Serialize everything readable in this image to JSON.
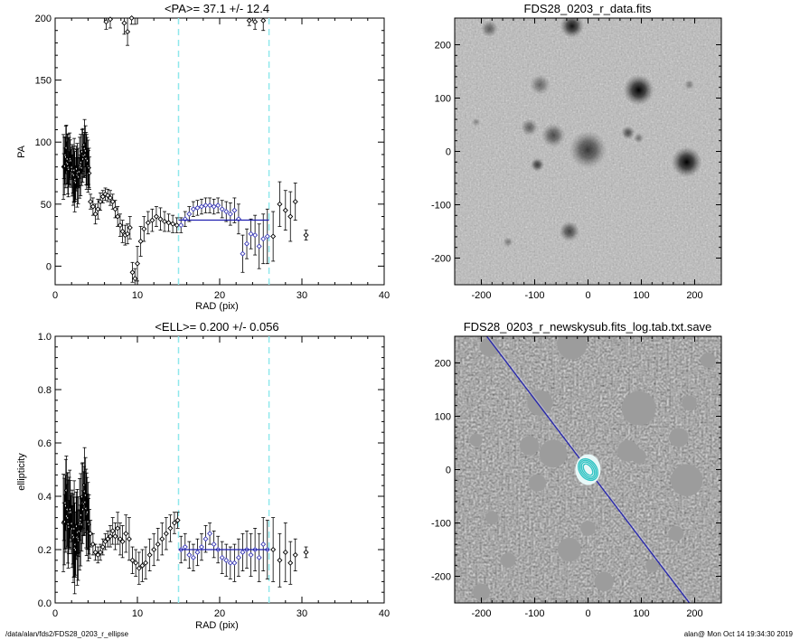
{
  "footer": {
    "path": "/data/alan/fds2/FDS28_0203_r_ellipse",
    "stamp": "alan@  Mon Oct 14 19:34:30 2019"
  },
  "colors": {
    "axes": "#000000",
    "fit_points": "#3b3bb5",
    "fit_line": "#1f1fb0",
    "bounds": "#8fe8ec",
    "contour": "#33c4c4"
  },
  "chart_data": [
    {
      "type": "scatter",
      "title": "<PA>=  37.1 +/-  12.4",
      "xlabel": "RAD (pix)",
      "ylabel": "PA",
      "xlim": [
        0,
        40
      ],
      "ylim": [
        -15,
        200
      ],
      "xticks": [
        0,
        10,
        20,
        30,
        40
      ],
      "yticks": [
        0,
        50,
        100,
        150,
        200
      ],
      "grid": false,
      "mean_value": 37.1,
      "fit_range": [
        15,
        26
      ],
      "bound_lines": [
        15,
        26
      ],
      "dense_band": {
        "x0": 1.0,
        "x1": 4.2,
        "center": 80,
        "amp": 15,
        "err": 20
      },
      "top_points": [
        {
          "x": 6.2,
          "y": 197,
          "e": 6
        },
        {
          "x": 6.7,
          "y": 199,
          "e": 7
        },
        {
          "x": 8.4,
          "y": 196,
          "e": 9
        },
        {
          "x": 8.8,
          "y": 189,
          "e": 11
        },
        {
          "x": 9.3,
          "y": 200,
          "e": 5
        },
        {
          "x": 9.7,
          "y": 203,
          "e": 8
        },
        {
          "x": 23.6,
          "y": 198,
          "e": 4
        },
        {
          "x": 24.3,
          "y": 197,
          "e": 6
        },
        {
          "x": 25.3,
          "y": 198,
          "e": 8
        }
      ],
      "points": [
        {
          "x": 4.3,
          "y": 52,
          "e": 6
        },
        {
          "x": 4.6,
          "y": 48,
          "e": 7
        },
        {
          "x": 4.9,
          "y": 42,
          "e": 8
        },
        {
          "x": 5.2,
          "y": 46,
          "e": 8
        },
        {
          "x": 5.5,
          "y": 52,
          "e": 7
        },
        {
          "x": 5.8,
          "y": 56,
          "e": 5
        },
        {
          "x": 6.1,
          "y": 58,
          "e": 5
        },
        {
          "x": 6.4,
          "y": 57,
          "e": 5
        },
        {
          "x": 6.7,
          "y": 55,
          "e": 6
        },
        {
          "x": 7.0,
          "y": 52,
          "e": 6
        },
        {
          "x": 7.3,
          "y": 46,
          "e": 7
        },
        {
          "x": 7.6,
          "y": 40,
          "e": 8
        },
        {
          "x": 7.9,
          "y": 33,
          "e": 9
        },
        {
          "x": 8.2,
          "y": 28,
          "e": 9
        },
        {
          "x": 8.5,
          "y": 25,
          "e": 8
        },
        {
          "x": 8.8,
          "y": 26,
          "e": 8
        },
        {
          "x": 9.1,
          "y": 31,
          "e": 9
        },
        {
          "x": 9.4,
          "y": -5,
          "e": 8
        },
        {
          "x": 9.7,
          "y": -10,
          "e": 8
        },
        {
          "x": 10.0,
          "y": 2,
          "e": 14
        },
        {
          "x": 10.4,
          "y": 20,
          "e": 12
        },
        {
          "x": 10.8,
          "y": 30,
          "e": 10
        },
        {
          "x": 11.3,
          "y": 35,
          "e": 9
        },
        {
          "x": 11.8,
          "y": 37,
          "e": 9
        },
        {
          "x": 12.3,
          "y": 40,
          "e": 8
        },
        {
          "x": 12.8,
          "y": 38,
          "e": 9
        },
        {
          "x": 13.3,
          "y": 36,
          "e": 8
        },
        {
          "x": 13.8,
          "y": 35,
          "e": 7
        },
        {
          "x": 14.3,
          "y": 34,
          "e": 7
        },
        {
          "x": 14.8,
          "y": 33,
          "e": 6
        },
        {
          "x": 26.5,
          "y": 24,
          "e": 20
        },
        {
          "x": 27.3,
          "y": 50,
          "e": 18
        },
        {
          "x": 28.0,
          "y": 45,
          "e": 16
        },
        {
          "x": 28.6,
          "y": 40,
          "e": 20
        },
        {
          "x": 29.2,
          "y": 52,
          "e": 15
        },
        {
          "x": 30.5,
          "y": 25,
          "e": 4
        }
      ],
      "fit_points": [
        {
          "x": 15.3,
          "y": 33,
          "e": 6
        },
        {
          "x": 15.8,
          "y": 38,
          "e": 6
        },
        {
          "x": 16.3,
          "y": 42,
          "e": 6
        },
        {
          "x": 16.8,
          "y": 46,
          "e": 6
        },
        {
          "x": 17.3,
          "y": 47,
          "e": 6
        },
        {
          "x": 17.8,
          "y": 48,
          "e": 6
        },
        {
          "x": 18.3,
          "y": 49,
          "e": 6
        },
        {
          "x": 18.8,
          "y": 49,
          "e": 6
        },
        {
          "x": 19.3,
          "y": 48,
          "e": 6
        },
        {
          "x": 19.8,
          "y": 49,
          "e": 6
        },
        {
          "x": 20.3,
          "y": 46,
          "e": 7
        },
        {
          "x": 20.8,
          "y": 44,
          "e": 8
        },
        {
          "x": 21.3,
          "y": 42,
          "e": 9
        },
        {
          "x": 21.8,
          "y": 45,
          "e": 10
        },
        {
          "x": 22.3,
          "y": 38,
          "e": 12
        },
        {
          "x": 22.8,
          "y": 10,
          "e": 15
        },
        {
          "x": 23.3,
          "y": 18,
          "e": 12
        },
        {
          "x": 23.8,
          "y": 26,
          "e": 12
        },
        {
          "x": 24.3,
          "y": 25,
          "e": 16
        },
        {
          "x": 24.8,
          "y": 16,
          "e": 18
        },
        {
          "x": 25.3,
          "y": 22,
          "e": 20
        },
        {
          "x": 25.8,
          "y": 24,
          "e": 22
        }
      ]
    },
    {
      "type": "scatter",
      "title": "<ELL>= 0.200 +/-  0.056",
      "xlabel": "RAD (pix)",
      "ylabel": "ellipticity",
      "xlim": [
        0,
        40
      ],
      "ylim": [
        0.0,
        1.0
      ],
      "xticks": [
        0,
        10,
        20,
        30,
        40
      ],
      "yticks": [
        0.0,
        0.2,
        0.4,
        0.6,
        0.8,
        1.0
      ],
      "grid": false,
      "mean_value": 0.2,
      "fit_range": [
        15,
        26
      ],
      "bound_lines": [
        15,
        26
      ],
      "dense_band": {
        "x0": 1.0,
        "x1": 4.2,
        "center": 0.3,
        "amp": 0.12,
        "err": 0.14
      },
      "points": [
        {
          "x": 4.3,
          "y": 0.26,
          "e": 0.05
        },
        {
          "x": 4.6,
          "y": 0.22,
          "e": 0.04
        },
        {
          "x": 4.9,
          "y": 0.19,
          "e": 0.03
        },
        {
          "x": 5.2,
          "y": 0.18,
          "e": 0.03
        },
        {
          "x": 5.5,
          "y": 0.19,
          "e": 0.03
        },
        {
          "x": 5.8,
          "y": 0.21,
          "e": 0.03
        },
        {
          "x": 6.1,
          "y": 0.23,
          "e": 0.03
        },
        {
          "x": 6.4,
          "y": 0.24,
          "e": 0.03
        },
        {
          "x": 6.7,
          "y": 0.25,
          "e": 0.04
        },
        {
          "x": 7.0,
          "y": 0.27,
          "e": 0.05
        },
        {
          "x": 7.3,
          "y": 0.25,
          "e": 0.05
        },
        {
          "x": 7.6,
          "y": 0.28,
          "e": 0.06
        },
        {
          "x": 7.9,
          "y": 0.24,
          "e": 0.06
        },
        {
          "x": 8.2,
          "y": 0.23,
          "e": 0.06
        },
        {
          "x": 8.6,
          "y": 0.26,
          "e": 0.07
        },
        {
          "x": 9.0,
          "y": 0.24,
          "e": 0.08
        },
        {
          "x": 9.4,
          "y": 0.16,
          "e": 0.05
        },
        {
          "x": 9.8,
          "y": 0.15,
          "e": 0.05
        },
        {
          "x": 10.2,
          "y": 0.13,
          "e": 0.06
        },
        {
          "x": 10.6,
          "y": 0.14,
          "e": 0.06
        },
        {
          "x": 11.0,
          "y": 0.15,
          "e": 0.06
        },
        {
          "x": 11.5,
          "y": 0.18,
          "e": 0.06
        },
        {
          "x": 12.0,
          "y": 0.2,
          "e": 0.06
        },
        {
          "x": 12.5,
          "y": 0.22,
          "e": 0.06
        },
        {
          "x": 13.0,
          "y": 0.24,
          "e": 0.06
        },
        {
          "x": 13.5,
          "y": 0.26,
          "e": 0.06
        },
        {
          "x": 14.0,
          "y": 0.28,
          "e": 0.05
        },
        {
          "x": 14.5,
          "y": 0.3,
          "e": 0.04
        },
        {
          "x": 14.9,
          "y": 0.31,
          "e": 0.03
        },
        {
          "x": 26.5,
          "y": 0.2,
          "e": 0.12
        },
        {
          "x": 27.3,
          "y": 0.16,
          "e": 0.1
        },
        {
          "x": 28.0,
          "y": 0.19,
          "e": 0.11
        },
        {
          "x": 28.6,
          "y": 0.15,
          "e": 0.08
        },
        {
          "x": 29.2,
          "y": 0.18,
          "e": 0.06
        },
        {
          "x": 30.5,
          "y": 0.19,
          "e": 0.02
        }
      ],
      "fit_points": [
        {
          "x": 15.3,
          "y": 0.2,
          "e": 0.05
        },
        {
          "x": 15.8,
          "y": 0.21,
          "e": 0.05
        },
        {
          "x": 16.3,
          "y": 0.18,
          "e": 0.05
        },
        {
          "x": 16.8,
          "y": 0.17,
          "e": 0.05
        },
        {
          "x": 17.3,
          "y": 0.19,
          "e": 0.05
        },
        {
          "x": 17.8,
          "y": 0.21,
          "e": 0.05
        },
        {
          "x": 18.3,
          "y": 0.24,
          "e": 0.05
        },
        {
          "x": 18.8,
          "y": 0.26,
          "e": 0.04
        },
        {
          "x": 19.3,
          "y": 0.22,
          "e": 0.05
        },
        {
          "x": 19.8,
          "y": 0.2,
          "e": 0.05
        },
        {
          "x": 20.3,
          "y": 0.17,
          "e": 0.06
        },
        {
          "x": 20.8,
          "y": 0.16,
          "e": 0.06
        },
        {
          "x": 21.3,
          "y": 0.15,
          "e": 0.06
        },
        {
          "x": 21.8,
          "y": 0.15,
          "e": 0.07
        },
        {
          "x": 22.3,
          "y": 0.17,
          "e": 0.07
        },
        {
          "x": 22.8,
          "y": 0.19,
          "e": 0.07
        },
        {
          "x": 23.3,
          "y": 0.2,
          "e": 0.07
        },
        {
          "x": 23.8,
          "y": 0.18,
          "e": 0.08
        },
        {
          "x": 24.3,
          "y": 0.2,
          "e": 0.08
        },
        {
          "x": 24.8,
          "y": 0.17,
          "e": 0.09
        },
        {
          "x": 25.3,
          "y": 0.22,
          "e": 0.1
        },
        {
          "x": 25.8,
          "y": 0.2,
          "e": 0.11
        }
      ]
    },
    {
      "type": "heatmap",
      "title": "FDS28_0203_r_data.fits",
      "xlabel": "",
      "ylabel": "",
      "xlim": [
        -250,
        250
      ],
      "ylim": [
        -250,
        250
      ],
      "xticks": [
        -200,
        -100,
        0,
        100,
        200
      ],
      "yticks": [
        -200,
        -100,
        0,
        100,
        200
      ],
      "sources": [
        {
          "x": -30,
          "y": 235,
          "r": 14,
          "a": 0.9
        },
        {
          "x": -185,
          "y": 230,
          "r": 10,
          "a": 0.5
        },
        {
          "x": 95,
          "y": 115,
          "r": 18,
          "a": 1.0
        },
        {
          "x": 190,
          "y": 125,
          "r": 6,
          "a": 0.35
        },
        {
          "x": -90,
          "y": 125,
          "r": 12,
          "a": 0.45
        },
        {
          "x": -110,
          "y": 45,
          "r": 10,
          "a": 0.5
        },
        {
          "x": -65,
          "y": 30,
          "r": 14,
          "a": 0.6
        },
        {
          "x": 0,
          "y": 3,
          "r": 22,
          "a": 0.7
        },
        {
          "x": 75,
          "y": 35,
          "r": 8,
          "a": 0.6
        },
        {
          "x": 95,
          "y": 25,
          "r": 6,
          "a": 0.4
        },
        {
          "x": -95,
          "y": -25,
          "r": 8,
          "a": 0.7
        },
        {
          "x": 185,
          "y": -20,
          "r": 18,
          "a": 1.0
        },
        {
          "x": -35,
          "y": -150,
          "r": 12,
          "a": 0.65
        },
        {
          "x": -150,
          "y": -170,
          "r": 6,
          "a": 0.35
        },
        {
          "x": -210,
          "y": 55,
          "r": 5,
          "a": 0.3
        }
      ]
    },
    {
      "type": "heatmap",
      "title": "FDS28_0203_r_newskysub.fits_log.tab.txt.save",
      "xlabel": "",
      "ylabel": "",
      "xlim": [
        -250,
        250
      ],
      "ylim": [
        -250,
        250
      ],
      "xticks": [
        -200,
        -100,
        0,
        100,
        200
      ],
      "yticks": [
        -200,
        -100,
        0,
        100,
        200
      ],
      "pa_line": [
        [
          -190,
          250
        ],
        [
          190,
          -250
        ]
      ],
      "mask_circles": [
        {
          "x": -30,
          "y": 235,
          "r": 28
        },
        {
          "x": -185,
          "y": 230,
          "r": 18
        },
        {
          "x": 95,
          "y": 115,
          "r": 32
        },
        {
          "x": 190,
          "y": 125,
          "r": 14
        },
        {
          "x": -90,
          "y": 125,
          "r": 24
        },
        {
          "x": -110,
          "y": 45,
          "r": 18
        },
        {
          "x": -65,
          "y": 30,
          "r": 26
        },
        {
          "x": 75,
          "y": 35,
          "r": 20
        },
        {
          "x": 95,
          "y": 25,
          "r": 14
        },
        {
          "x": -95,
          "y": -25,
          "r": 16
        },
        {
          "x": 185,
          "y": -20,
          "r": 30
        },
        {
          "x": -35,
          "y": -150,
          "r": 22
        },
        {
          "x": -150,
          "y": -170,
          "r": 14
        },
        {
          "x": -210,
          "y": 55,
          "r": 12
        },
        {
          "x": 165,
          "y": -120,
          "r": 14
        },
        {
          "x": 30,
          "y": -210,
          "r": 18
        },
        {
          "x": -180,
          "y": -90,
          "r": 12
        },
        {
          "x": 120,
          "y": -180,
          "r": 12
        },
        {
          "x": -200,
          "y": -230,
          "r": 16
        },
        {
          "x": 225,
          "y": 205,
          "r": 14
        },
        {
          "x": 170,
          "y": 60,
          "r": 18
        },
        {
          "x": 0,
          "y": -110,
          "r": 14
        }
      ],
      "contours": [
        {
          "rx": 16,
          "ry": 22
        },
        {
          "rx": 13,
          "ry": 19
        },
        {
          "rx": 10,
          "ry": 16
        },
        {
          "rx": 7,
          "ry": 12
        }
      ]
    }
  ]
}
